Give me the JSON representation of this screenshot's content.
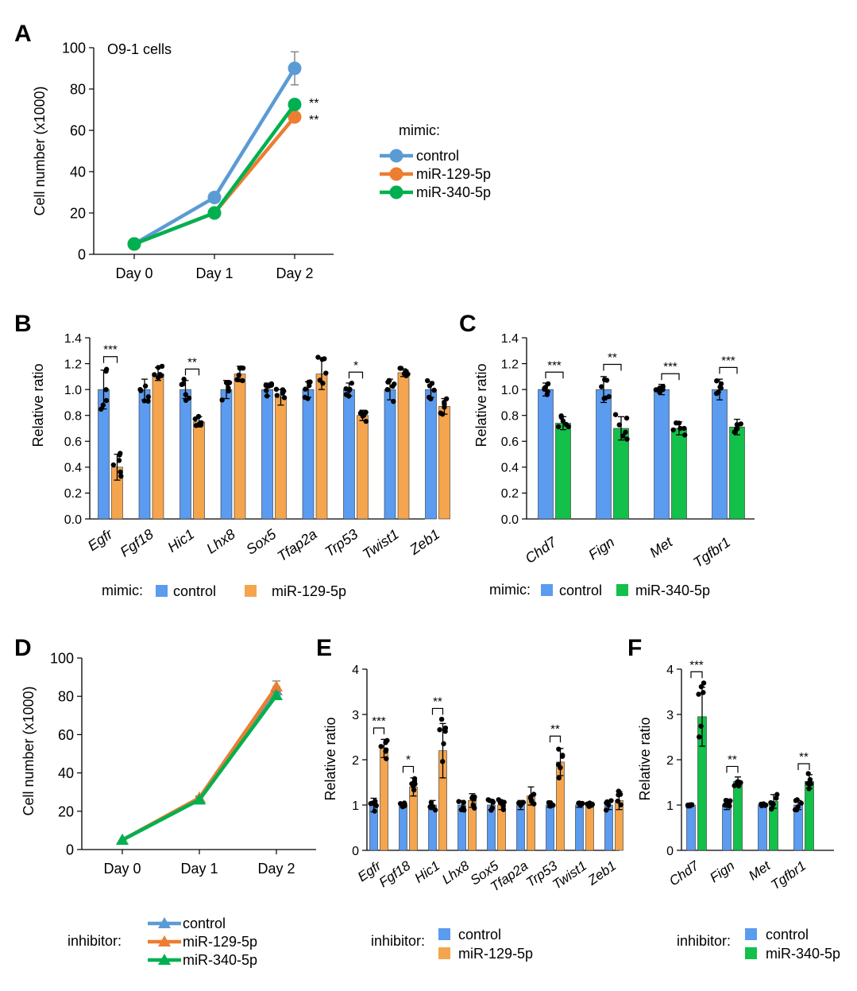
{
  "colors": {
    "control": "#5b9bd5",
    "mir129": "#ed7d31",
    "mir340": "#00b050",
    "control_bar": "#5b9bf0",
    "mir129_bar": "#f4a54e",
    "mir340_bar": "#12c04a",
    "axis": "#000000",
    "error": "#808080",
    "dot": "#000000"
  },
  "chart_data": [
    {
      "id": "A",
      "type": "line",
      "panel_label": "A",
      "annotation": "O9-1 cells",
      "ylabel": "Cell number (x1000)",
      "categories": [
        "Day 0",
        "Day 1",
        "Day 2"
      ],
      "ylim": [
        0,
        100
      ],
      "yticks": [
        "0",
        "20",
        "40",
        "60",
        "80",
        "100"
      ],
      "marker": "circle",
      "series": [
        {
          "key": "control",
          "name": "control",
          "values": [
            5,
            27.5,
            90
          ],
          "errors": [
            0,
            1,
            8
          ]
        },
        {
          "key": "mir129",
          "name": "miR-129-5p",
          "values": [
            5,
            20,
            66.5
          ],
          "errors": [
            0,
            1,
            2
          ]
        },
        {
          "key": "mir340",
          "name": "miR-340-5p",
          "values": [
            5,
            20,
            72.5
          ],
          "errors": [
            0,
            1,
            2
          ]
        }
      ],
      "significance": [
        "**",
        "**"
      ],
      "legend_title": "mimic:",
      "legend_position": "right"
    },
    {
      "id": "B",
      "type": "bar",
      "panel_label": "B",
      "ylabel": "Relative ratio",
      "categories": [
        "Egfr",
        "Fgf18",
        "Hic1",
        "Lhx8",
        "Sox5",
        "Tfap2a",
        "Trp53",
        "Twist1",
        "Zeb1"
      ],
      "ylim": [
        0,
        1.4
      ],
      "yticks": [
        "0.0",
        "0.2",
        "0.4",
        "0.6",
        "0.8",
        "1.0",
        "1.2",
        "1.4"
      ],
      "series": [
        {
          "key": "control",
          "name": "control",
          "values": [
            1.0,
            1.0,
            1.0,
            1.0,
            1.0,
            1.0,
            1.0,
            1.0,
            1.0
          ],
          "errors": [
            0.15,
            0.08,
            0.07,
            0.07,
            0.05,
            0.06,
            0.05,
            0.08,
            0.06
          ]
        },
        {
          "key": "mir129",
          "name": "miR-129-5p",
          "values": [
            0.4,
            1.12,
            0.75,
            1.12,
            0.94,
            1.12,
            0.8,
            1.13,
            0.87
          ],
          "errors": [
            0.1,
            0.05,
            0.04,
            0.06,
            0.06,
            0.12,
            0.04,
            0.03,
            0.06
          ]
        }
      ],
      "significance": [
        {
          "category": "Egfr",
          "label": "***"
        },
        {
          "category": "Hic1",
          "label": "**"
        },
        {
          "category": "Trp53",
          "label": "*"
        }
      ],
      "legend_title": "mimic:",
      "legend_position": "bottom"
    },
    {
      "id": "C",
      "type": "bar",
      "panel_label": "C",
      "ylabel": "Relative ratio",
      "categories": [
        "Chd7",
        "Fign",
        "Met",
        "Tgfbr1"
      ],
      "ylim": [
        0,
        1.4
      ],
      "yticks": [
        "0.0",
        "0.2",
        "0.4",
        "0.6",
        "0.8",
        "1.0",
        "1.2",
        "1.4"
      ],
      "series": [
        {
          "key": "control",
          "name": "control",
          "values": [
            1.0,
            1.0,
            1.0,
            1.0
          ],
          "errors": [
            0.05,
            0.1,
            0.04,
            0.08
          ]
        },
        {
          "key": "mir340",
          "name": "miR-340-5p",
          "values": [
            0.74,
            0.7,
            0.7,
            0.71
          ],
          "errors": [
            0.05,
            0.09,
            0.05,
            0.06
          ]
        }
      ],
      "significance": [
        {
          "category": "Chd7",
          "label": "***"
        },
        {
          "category": "Fign",
          "label": "**"
        },
        {
          "category": "Met",
          "label": "***"
        },
        {
          "category": "Tgfbr1",
          "label": "***"
        }
      ],
      "legend_title": "mimic:",
      "legend_position": "bottom"
    },
    {
      "id": "D",
      "type": "line",
      "panel_label": "D",
      "ylabel": "Cell number (x1000)",
      "categories": [
        "Day 0",
        "Day 1",
        "Day 2"
      ],
      "ylim": [
        0,
        100
      ],
      "yticks": [
        "0",
        "20",
        "40",
        "60",
        "80",
        "100"
      ],
      "marker": "triangle",
      "series": [
        {
          "key": "control",
          "name": "control",
          "values": [
            5,
            26.5,
            83
          ],
          "errors": [
            0,
            1,
            2
          ]
        },
        {
          "key": "mir129",
          "name": "miR-129-5p",
          "values": [
            5,
            27,
            85
          ],
          "errors": [
            0,
            1,
            3
          ]
        },
        {
          "key": "mir340",
          "name": "miR-340-5p",
          "values": [
            5,
            26,
            80.5
          ],
          "errors": [
            0,
            1,
            2
          ]
        }
      ],
      "legend_title": "inhibitor:",
      "legend_position": "bottom"
    },
    {
      "id": "E",
      "type": "bar",
      "panel_label": "E",
      "ylabel": "Relative ratio",
      "categories": [
        "Egfr",
        "Fgf18",
        "Hic1",
        "Lhx8",
        "Sox5",
        "Tfap2a",
        "Trp53",
        "Twist1",
        "Zeb1"
      ],
      "ylim": [
        0,
        4
      ],
      "yticks": [
        "0",
        "1",
        "2",
        "3",
        "4"
      ],
      "series": [
        {
          "key": "control",
          "name": "control",
          "values": [
            1.0,
            1.0,
            1.0,
            1.0,
            1.0,
            1.0,
            1.0,
            1.0,
            1.0
          ],
          "errors": [
            0.15,
            0.05,
            0.1,
            0.1,
            0.1,
            0.1,
            0.05,
            0.05,
            0.1
          ]
        },
        {
          "key": "mir129",
          "name": "miR-129-5p",
          "values": [
            2.25,
            1.4,
            2.2,
            1.1,
            1.0,
            1.2,
            1.95,
            1.0,
            1.1
          ],
          "errors": [
            0.2,
            0.2,
            0.6,
            0.15,
            0.1,
            0.2,
            0.3,
            0.05,
            0.2
          ]
        }
      ],
      "significance": [
        {
          "category": "Egfr",
          "label": "***"
        },
        {
          "category": "Fgf18",
          "label": "*"
        },
        {
          "category": "Hic1",
          "label": "**"
        },
        {
          "category": "Trp53",
          "label": "**"
        }
      ],
      "legend_title": "inhibitor:",
      "legend_position": "bottom"
    },
    {
      "id": "F",
      "type": "bar",
      "panel_label": "F",
      "ylabel": "Relative ratio",
      "categories": [
        "Chd7",
        "Fign",
        "Met",
        "Tgfbr1"
      ],
      "ylim": [
        0,
        4
      ],
      "yticks": [
        "0",
        "1",
        "2",
        "3",
        "4"
      ],
      "series": [
        {
          "key": "control",
          "name": "control",
          "values": [
            1.0,
            1.0,
            1.0,
            1.0
          ],
          "errors": [
            0.03,
            0.1,
            0.03,
            0.1
          ]
        },
        {
          "key": "mir340",
          "name": "miR-340-5p",
          "values": [
            2.95,
            1.52,
            1.08,
            1.52
          ],
          "errors": [
            0.65,
            0.1,
            0.15,
            0.15
          ]
        }
      ],
      "significance": [
        {
          "category": "Chd7",
          "label": "***"
        },
        {
          "category": "Fign",
          "label": "**"
        },
        {
          "category": "Tgfbr1",
          "label": "**"
        }
      ],
      "legend_title": "inhibitor:",
      "legend_position": "bottom"
    }
  ]
}
